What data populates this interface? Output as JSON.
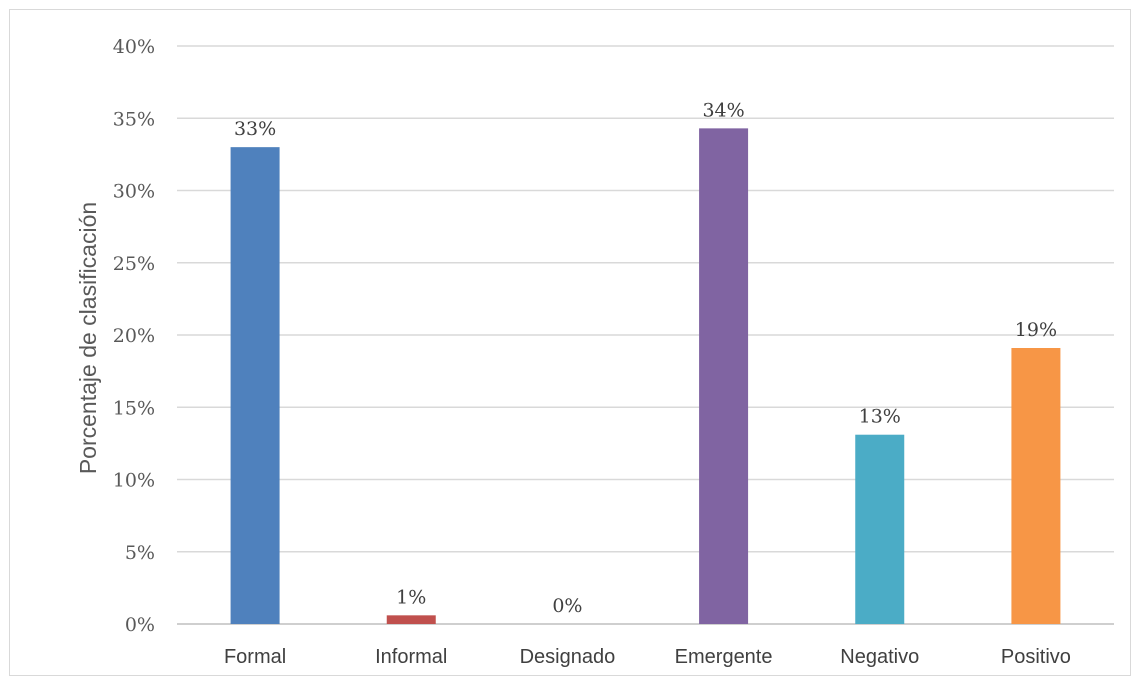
{
  "chart_data": {
    "type": "bar",
    "categories": [
      "Formal",
      "Informal",
      "Designado",
      "Emergente",
      "Negativo",
      "Positivo"
    ],
    "values": [
      33,
      0.6,
      0,
      34.3,
      13.1,
      19.1
    ],
    "data_labels": [
      "33%",
      "1%",
      "0%",
      "34%",
      "13%",
      "19%"
    ],
    "colors": [
      "#4f81bd",
      "#c0504d",
      "#9bbb59",
      "#8064a2",
      "#4bacc6",
      "#f79646"
    ],
    "title": "",
    "xlabel": "",
    "ylabel": "Porcentaje de clasificación",
    "ylim": [
      0,
      40
    ],
    "yticks": [
      0,
      5,
      10,
      15,
      20,
      25,
      30,
      35,
      40
    ],
    "ytick_labels": [
      "0%",
      "5%",
      "10%",
      "15%",
      "20%",
      "25%",
      "30%",
      "35%",
      "40%"
    ],
    "grid": true,
    "legend": "none"
  }
}
